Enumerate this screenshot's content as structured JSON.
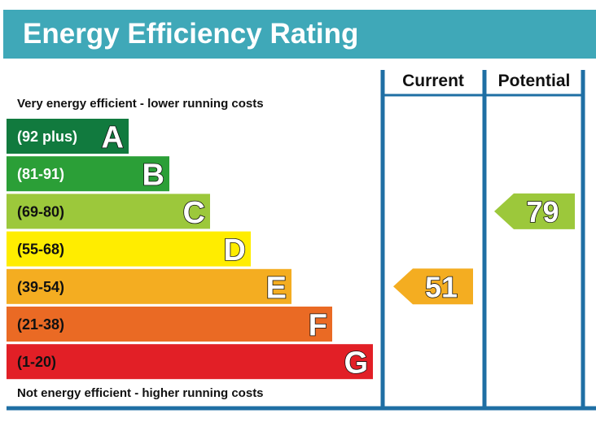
{
  "header": {
    "title": "Energy Efficiency Rating"
  },
  "chart_data": {
    "type": "bar",
    "title": "Energy Efficiency Rating",
    "columns": [
      "Current",
      "Potential"
    ],
    "top_note": "Very energy efficient - lower running costs",
    "bottom_note": "Not energy efficient - higher running costs",
    "bands": [
      {
        "letter": "A",
        "range": "(92 plus)",
        "color": "#117a3e",
        "text_color": "#ffffff"
      },
      {
        "letter": "B",
        "range": "(81-91)",
        "color": "#2b9f37",
        "text_color": "#ffffff"
      },
      {
        "letter": "C",
        "range": "(69-80)",
        "color": "#9cc83b",
        "text_color": "#111111"
      },
      {
        "letter": "D",
        "range": "(55-68)",
        "color": "#ffed00",
        "text_color": "#111111"
      },
      {
        "letter": "E",
        "range": "(39-54)",
        "color": "#f4ad21",
        "text_color": "#111111"
      },
      {
        "letter": "F",
        "range": "(21-38)",
        "color": "#ea6a24",
        "text_color": "#111111"
      },
      {
        "letter": "G",
        "range": "(1-20)",
        "color": "#e21f26",
        "text_color": "#111111"
      }
    ],
    "current": {
      "value": 51,
      "band": "E",
      "color": "#f4ad21"
    },
    "potential": {
      "value": 79,
      "band": "C",
      "color": "#9cc83b"
    },
    "frame_color": "#1f6fa4"
  }
}
